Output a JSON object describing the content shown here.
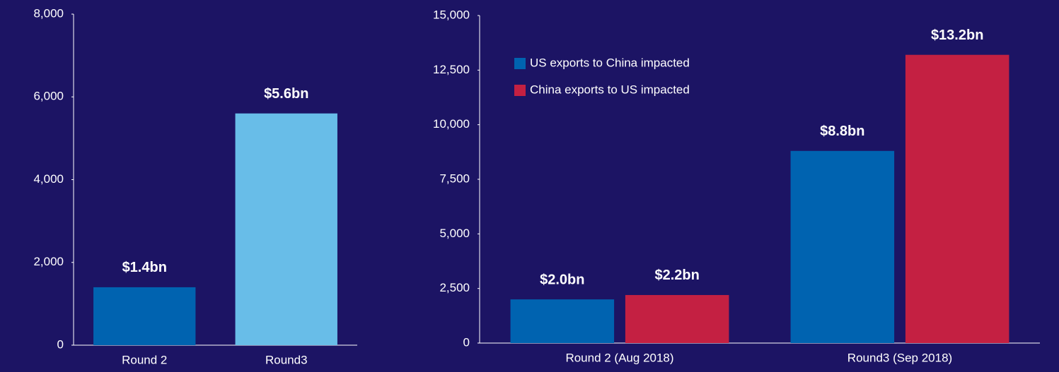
{
  "chart_data": [
    {
      "type": "bar",
      "categories": [
        "Round 2",
        "Round3"
      ],
      "values": [
        1400,
        5600
      ],
      "value_labels": [
        "$1.4bn",
        "$5.6bn"
      ],
      "colors": [
        "#0063b0",
        "#68bde8"
      ],
      "ylim": [
        0,
        8000
      ],
      "yticks": [
        0,
        {
          "value": 2000,
          "label": "2,000"
        },
        {
          "value": 4000,
          "label": "4,000"
        },
        {
          "value": 6000,
          "label": "6,000"
        },
        {
          "value": 8000,
          "label": "8,000"
        }
      ],
      "grid": false
    },
    {
      "type": "bar",
      "categories": [
        "Round 2 (Aug 2018)",
        "Round3 (Sep 2018)"
      ],
      "series": [
        {
          "name": "US exports to China impacted",
          "color": "#0063b0",
          "values": [
            2000,
            8800
          ],
          "value_labels": [
            "$2.0bn",
            "$8.8bn"
          ]
        },
        {
          "name": "China exports to US impacted",
          "color": "#c42042",
          "values": [
            2200,
            13200
          ],
          "value_labels": [
            "$2.2bn",
            "$13.2bn"
          ]
        }
      ],
      "ylim": [
        0,
        15000
      ],
      "yticks": [
        0,
        {
          "value": 2500,
          "label": "2,500"
        },
        {
          "value": 5000,
          "label": "5,000"
        },
        {
          "value": 7500,
          "label": "7,500"
        },
        {
          "value": 10000,
          "label": "10,000"
        },
        {
          "value": 12500,
          "label": "12,500"
        },
        {
          "value": 15000,
          "label": "15,000"
        }
      ],
      "grid": false,
      "legend": "upper-left"
    }
  ]
}
